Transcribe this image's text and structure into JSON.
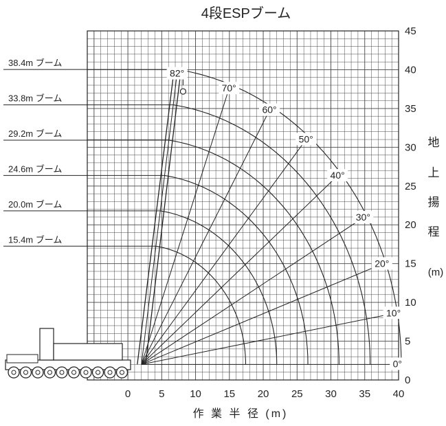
{
  "chart_data": {
    "type": "diagram",
    "title": "4段ESPブーム",
    "xlabel": "作 業 半 径 (m)",
    "ylabel_chars": [
      "地",
      "上",
      "揚",
      "程"
    ],
    "ylabel_unit": "(m)",
    "x_ticks": [
      "0",
      "5",
      "10",
      "15",
      "20",
      "25",
      "30",
      "35",
      "40"
    ],
    "y_ticks": [
      "0",
      "5",
      "10",
      "15",
      "20",
      "25",
      "30",
      "35",
      "40",
      "45"
    ],
    "xlim": [
      -6,
      40
    ],
    "ylim": [
      0,
      45
    ],
    "grid": true,
    "pivot": [
      2.0,
      2.0
    ],
    "booms": [
      {
        "label": "38.4m ブーム",
        "length": 38.4
      },
      {
        "label": "33.8m ブーム",
        "length": 33.8
      },
      {
        "label": "29.2m ブーム",
        "length": 29.2
      },
      {
        "label": "24.6m ブーム",
        "length": 24.6
      },
      {
        "label": "20.0m ブーム",
        "length": 20.0
      },
      {
        "label": "15.4m ブーム",
        "length": 15.4
      }
    ],
    "angles": [
      {
        "label": "82°",
        "deg": 82
      },
      {
        "label": "70°",
        "deg": 70
      },
      {
        "label": "60°",
        "deg": 60
      },
      {
        "label": "50°",
        "deg": 50
      },
      {
        "label": "40°",
        "deg": 40
      },
      {
        "label": "30°",
        "deg": 30
      },
      {
        "label": "20°",
        "deg": 20
      },
      {
        "label": "10°",
        "deg": 10
      },
      {
        "label": "0°",
        "deg": 0
      }
    ]
  }
}
